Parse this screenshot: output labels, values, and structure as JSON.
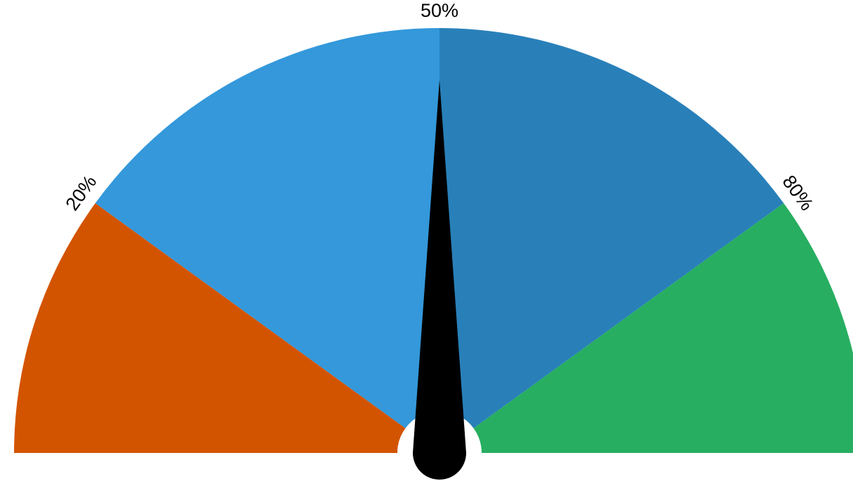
{
  "chart_data": {
    "type": "gauge",
    "title": "",
    "range": [
      0,
      100
    ],
    "unit": "%",
    "value": 50,
    "segments": [
      {
        "from": 0,
        "to": 20,
        "color": "#d35400"
      },
      {
        "from": 20,
        "to": 50,
        "color": "#3498db"
      },
      {
        "from": 50,
        "to": 80,
        "color": "#2980b9"
      },
      {
        "from": 80,
        "to": 100,
        "color": "#27ae60"
      }
    ],
    "tick_labels": [
      {
        "value": 20,
        "label": "20%"
      },
      {
        "value": 50,
        "label": "50%"
      },
      {
        "value": 80,
        "label": "80%"
      }
    ],
    "needle_color": "#000000"
  }
}
